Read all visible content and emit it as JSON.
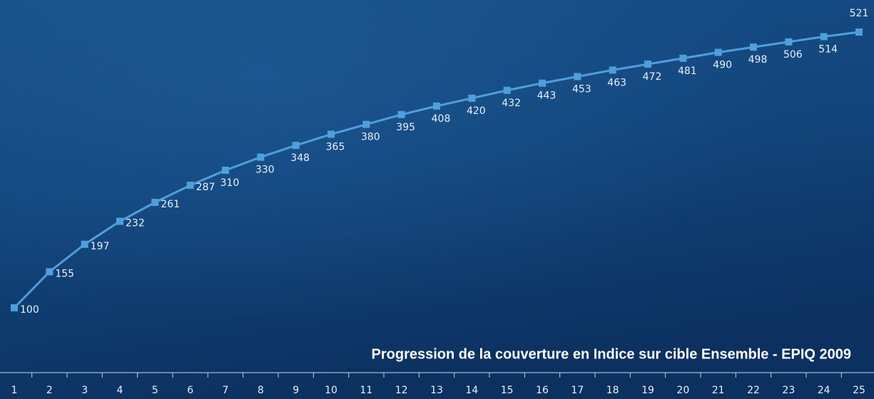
{
  "chart_data": {
    "type": "line",
    "title": "Progression de la couverture en Indice sur cible Ensemble -  EPIQ 2009",
    "categories": [
      "1",
      "2",
      "3",
      "4",
      "5",
      "6",
      "7",
      "8",
      "9",
      "10",
      "11",
      "12",
      "13",
      "14",
      "15",
      "16",
      "17",
      "18",
      "19",
      "20",
      "21",
      "22",
      "23",
      "24",
      "25"
    ],
    "values": [
      100,
      155,
      197,
      232,
      261,
      287,
      310,
      330,
      348,
      365,
      380,
      395,
      408,
      420,
      432,
      443,
      453,
      463,
      472,
      481,
      490,
      498,
      506,
      514,
      521
    ],
    "color": "#4f9fdc"
  }
}
